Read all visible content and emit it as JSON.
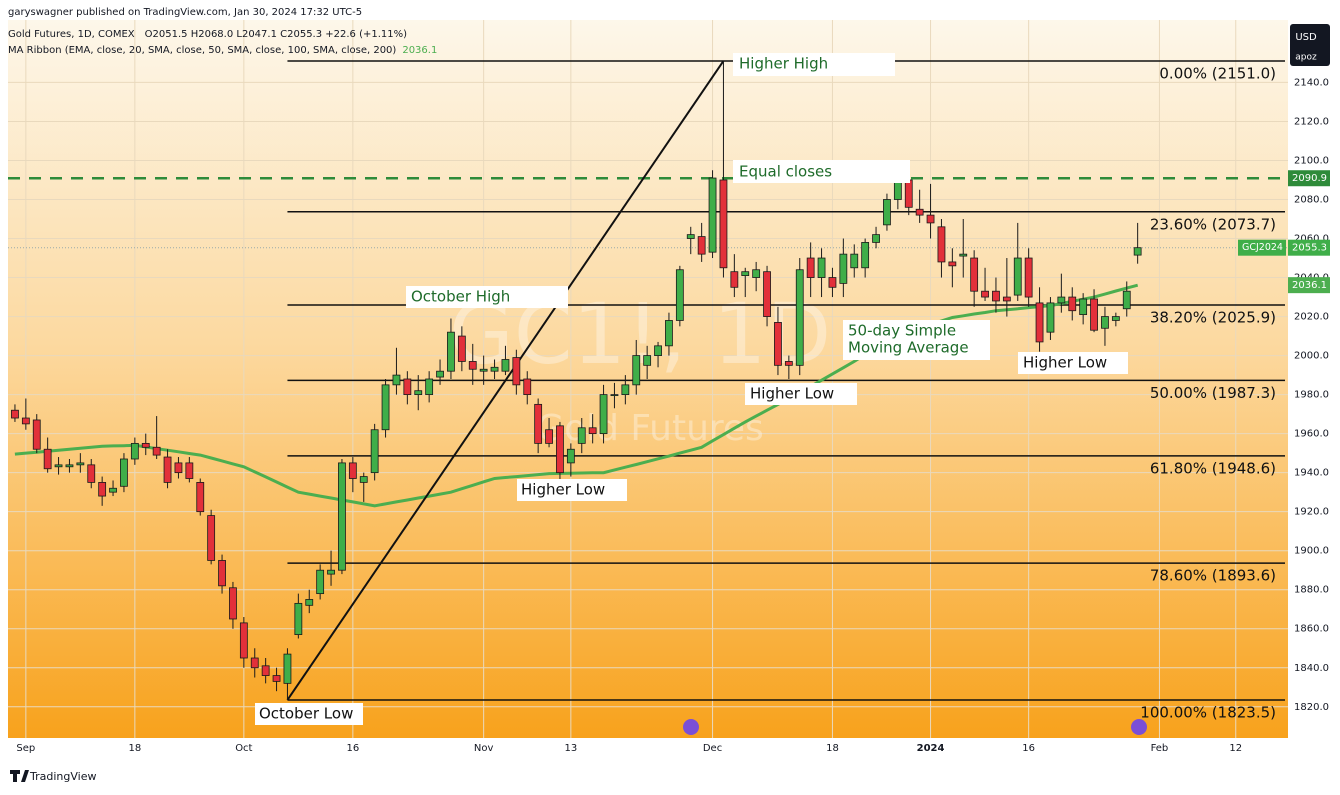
{
  "chart_data": {
    "type": "candlestick",
    "published": "garyswagner published on TradingView.com, Jan 30, 2024 17:32 UTC-5",
    "symbol": "Gold Futures, 1D, COMEX",
    "ohlc_text": "O2051.5  H2068.0  L2047.1  C2055.3  +22.6 (+1.11%)",
    "ma_name": "MA Ribbon (EMA, close, 20, SMA, close, 50, SMA, close, 100, SMA, close, 200)",
    "currency": "USD",
    "scale_mode": "apoz",
    "watermark": "GC1!, 1D",
    "watermark_sub": "Gold Futures",
    "brand": "TradingView",
    "contract": "GCJ2024",
    "categories": [
      null,
      "Sep",
      null,
      null,
      null,
      null,
      null,
      null,
      null,
      null,
      null,
      "18",
      null,
      null,
      null,
      null,
      null,
      null,
      null,
      null,
      null,
      "Oct",
      null,
      null,
      null,
      null,
      null,
      null,
      null,
      null,
      null,
      "16",
      null,
      null,
      null,
      null,
      null,
      null,
      null,
      null,
      null,
      null,
      null,
      "Nov",
      null,
      null,
      null,
      null,
      null,
      null,
      null,
      "13",
      null,
      null,
      null,
      null,
      null,
      null,
      null,
      null,
      null,
      null,
      null,
      null,
      "Dec",
      null,
      null,
      null,
      null,
      null,
      null,
      null,
      null,
      null,
      null,
      "18",
      null,
      null,
      null,
      null,
      null,
      null,
      null,
      null,
      "2024",
      null,
      null,
      null,
      null,
      null,
      null,
      null,
      null,
      "16",
      null,
      null,
      null,
      null,
      null,
      null,
      null,
      null,
      null,
      null,
      null,
      "Feb",
      null,
      null,
      null,
      null,
      null,
      null,
      "12",
      null,
      null,
      null,
      null
    ],
    "candles": {
      "up_color": "#3fae49",
      "down_color": "#e2303a",
      "open": [
        1972,
        1968,
        1967,
        1952,
        1943,
        1943,
        1944,
        1944,
        1935,
        1930,
        1933,
        1947,
        1955,
        1953,
        1948,
        1945,
        1945,
        1935,
        1918,
        1895,
        1881,
        1863,
        1845,
        1841,
        1836,
        1832,
        1857,
        1872,
        1878,
        1888,
        1890,
        1945,
        1935,
        1940,
        1962,
        1985,
        1988,
        1980,
        1980,
        1989,
        1992,
        2010,
        1997,
        1992,
        1992,
        1992,
        1999,
        1988,
        1975,
        1962,
        1964,
        1945,
        1955,
        1963,
        1960,
        1980,
        1980,
        1985,
        1995,
        2000,
        2005,
        2018,
        2060,
        2061,
        2053,
        2090,
        2043,
        2041,
        2040,
        2043,
        2017,
        1997,
        1995,
        2050,
        2040,
        2040,
        2037,
        2045,
        2045,
        2058,
        2067,
        2080,
        2090,
        2075,
        2072,
        2066,
        2048,
        2051,
        2050,
        2033,
        2033,
        2030,
        2031,
        2050,
        2027,
        2012,
        2027,
        2030,
        2021,
        2029,
        2014,
        2018,
        2024,
        2051.5,
        null,
        null,
        null,
        null,
        null,
        null,
        null,
        null,
        null,
        null,
        null,
        null,
        null
      ],
      "high": [
        1975,
        1978,
        1970,
        1958,
        1948,
        1947,
        1950,
        1947,
        1938,
        1936,
        1950,
        1958,
        1960,
        1969,
        1952,
        1948,
        1948,
        1937,
        1921,
        1898,
        1884,
        1866,
        1850,
        1845,
        1840,
        1850,
        1878,
        1880,
        1893,
        1900,
        1947,
        1948,
        1940,
        1965,
        1988,
        2004,
        1992,
        1990,
        1992,
        1998,
        2019,
        2015,
        2006,
        2000,
        1998,
        2005,
        2003,
        1992,
        1978,
        1968,
        1966,
        1955,
        1968,
        1970,
        1985,
        1986,
        1990,
        2008,
        2005,
        2007,
        2022,
        2046,
        2066,
        2068,
        2095,
        2151,
        2052,
        2045,
        2048,
        2046,
        2025,
        2000,
        2050,
        2058,
        2055,
        2045,
        2060,
        2057,
        2060,
        2066,
        2083,
        2095,
        2094,
        2085,
        2088,
        2070,
        2055,
        2070,
        2054,
        2045,
        2040,
        2050,
        2068,
        2055,
        2035,
        2030,
        2042,
        2035,
        2032,
        2034,
        2025,
        2022,
        2038,
        2068.0,
        null,
        null,
        null,
        null,
        null,
        null,
        null,
        null,
        null,
        null,
        null,
        null,
        null
      ],
      "low": [
        1966,
        1962,
        1950,
        1940,
        1939,
        1940,
        1940,
        1932,
        1923,
        1928,
        1930,
        1944,
        1949,
        1947,
        1932,
        1937,
        1935,
        1918,
        1893,
        1878,
        1860,
        1840,
        1835,
        1832,
        1828,
        1823.5,
        1855,
        1868,
        1875,
        1882,
        1888,
        1930,
        1925,
        1936,
        1958,
        1980,
        1975,
        1972,
        1976,
        1985,
        1988,
        1992,
        1985,
        1985,
        1988,
        1990,
        1980,
        1975,
        1950,
        1953,
        1936,
        1938,
        1950,
        1955,
        1955,
        1973,
        1975,
        1980,
        1988,
        1994,
        2000,
        2015,
        2052,
        2048,
        2050,
        2040,
        2030,
        2030,
        2033,
        2015,
        1990,
        1988,
        1990,
        2030,
        2030,
        2030,
        2030,
        2040,
        2040,
        2055,
        2064,
        2075,
        2072,
        2068,
        2060,
        2040,
        2035,
        2040,
        2025,
        2028,
        2022,
        2020,
        2028,
        2025,
        2002,
        2008,
        2022,
        2018,
        2016,
        2012,
        2005,
        2015,
        2020,
        2047.1,
        null,
        null,
        null,
        null,
        null,
        null,
        null,
        null,
        null,
        null,
        null,
        null,
        null
      ],
      "close": [
        1968,
        1965,
        1952,
        1942,
        1944,
        1944,
        1945,
        1935,
        1928,
        1932,
        1947,
        1955,
        1953,
        1949,
        1935,
        1940,
        1937,
        1920,
        1895,
        1882,
        1865,
        1845,
        1840,
        1836,
        1833,
        1847,
        1873,
        1875,
        1890,
        1890,
        1945,
        1937,
        1938,
        1962,
        1985,
        1990,
        1980,
        1982,
        1988,
        1992,
        2012,
        1997,
        1993,
        1993,
        1994,
        1998,
        1985,
        1980,
        1955,
        1955,
        1940,
        1952,
        1963,
        1960,
        1980,
        1980,
        1985,
        2000,
        2000,
        2005,
        2018,
        2044,
        2062,
        2052,
        2091,
        2045,
        2035,
        2043,
        2044,
        2020,
        1995,
        1995,
        2044,
        2040,
        2050,
        2035,
        2052,
        2052,
        2058,
        2062,
        2080,
        2090,
        2076,
        2072,
        2068,
        2048,
        2046,
        2052,
        2033,
        2030,
        2028,
        2028,
        2050,
        2030,
        2007,
        2027,
        2030,
        2023,
        2029,
        2013,
        2020,
        2020,
        2033,
        2055.3,
        null,
        null,
        null,
        null,
        null,
        null,
        null,
        null,
        null,
        null,
        null,
        null,
        null
      ]
    },
    "ma": {
      "color": "#4cae4f",
      "values": [
        1949.5,
        1950.0,
        1950.5,
        1951.0,
        1951.5,
        1952.0,
        1952.5,
        1953.0,
        1953.5,
        1953.7,
        1953.8,
        1954.0,
        1953.2,
        1952.3,
        1951.5,
        1950.7,
        1949.8,
        1949.0,
        1947.5,
        1946.0,
        1944.5,
        1943.0,
        1940.4,
        1937.8,
        1935.2,
        1932.6,
        1930.0,
        1929.0,
        1928.0,
        1927.0,
        1926.0,
        1925.0,
        1924.0,
        1923.0,
        1924.0,
        1925.0,
        1926.0,
        1927.0,
        1928.0,
        1929.0,
        1930.0,
        1931.8,
        1933.5,
        1935.3,
        1937.0,
        1937.5,
        1938.0,
        1938.5,
        1939.0,
        1939.5,
        1939.6,
        1939.7,
        1939.8,
        1939.9,
        1940.0,
        1941.4,
        1942.8,
        1944.2,
        1945.6,
        1947.1,
        1948.5,
        1950.0,
        1951.5,
        1953.0,
        1956.3,
        1959.5,
        1962.8,
        1966.0,
        1969.0,
        1972.0,
        1975.0,
        1978.0,
        1981.0,
        1984.2,
        1987.4,
        1990.6,
        1993.8,
        1997.0,
        2000.5,
        2004.0,
        2007.5,
        2011.0,
        2012.7,
        2014.4,
        2016.1,
        2017.8,
        2019.5,
        2020.4,
        2021.3,
        2022.1,
        2023.0,
        2023.5,
        2024.0,
        2024.6,
        2025.1,
        2025.6,
        2026.7,
        2027.8,
        2028.9,
        2030.0,
        2031.5,
        2033.1,
        2034.6,
        2036.1,
        null,
        null,
        null,
        null,
        null,
        null,
        null,
        null,
        null,
        null,
        null,
        null,
        null
      ]
    },
    "fib_levels": [
      {
        "value": 2151.0,
        "label": "0.00% (2151.0)"
      },
      {
        "value": 2073.7,
        "label": "23.60% (2073.7)"
      },
      {
        "value": 2025.9,
        "label": "38.20% (2025.9)"
      },
      {
        "value": 1987.3,
        "label": "50.00% (1987.3)"
      },
      {
        "value": 1948.6,
        "label": "61.80% (1948.6)"
      },
      {
        "value": 1893.6,
        "label": "78.60% (1893.6)"
      },
      {
        "value": 1823.5,
        "label": "100.00% (1823.5)"
      }
    ],
    "equal_close_level": 2090.9,
    "equal_close_color": "#2e8b3a",
    "annotations": [
      "Higher High",
      "Equal closes",
      "October High",
      "50-day Simple",
      "Moving Average",
      "Higher Low",
      "Higher Low",
      "Higher Low",
      "October Low"
    ],
    "ylim": [
      1804,
      2172
    ],
    "yticks": [
      {
        "value": 1820,
        "label": "1820.0"
      },
      {
        "value": 1840,
        "label": "1840.0"
      },
      {
        "value": 1860,
        "label": "1860.0"
      },
      {
        "value": 1880,
        "label": "1880.0"
      },
      {
        "value": 1900,
        "label": "1900.0"
      },
      {
        "value": 1920,
        "label": "1920.0"
      },
      {
        "value": 1940,
        "label": "1940.0"
      },
      {
        "value": 1960,
        "label": "1960.0"
      },
      {
        "value": 1980,
        "label": "1980.0"
      },
      {
        "value": 2000,
        "label": "2000.0"
      },
      {
        "value": 2020,
        "label": "2020.0"
      },
      {
        "value": 2040,
        "label": "2040.0"
      },
      {
        "value": 2060,
        "label": "2060.0"
      },
      {
        "value": 2080,
        "label": "2080.0"
      },
      {
        "value": 2100,
        "label": "2100.0"
      },
      {
        "value": 2120,
        "label": "2120.0"
      },
      {
        "value": 2140,
        "label": "2140.0"
      }
    ],
    "grid": true
  }
}
